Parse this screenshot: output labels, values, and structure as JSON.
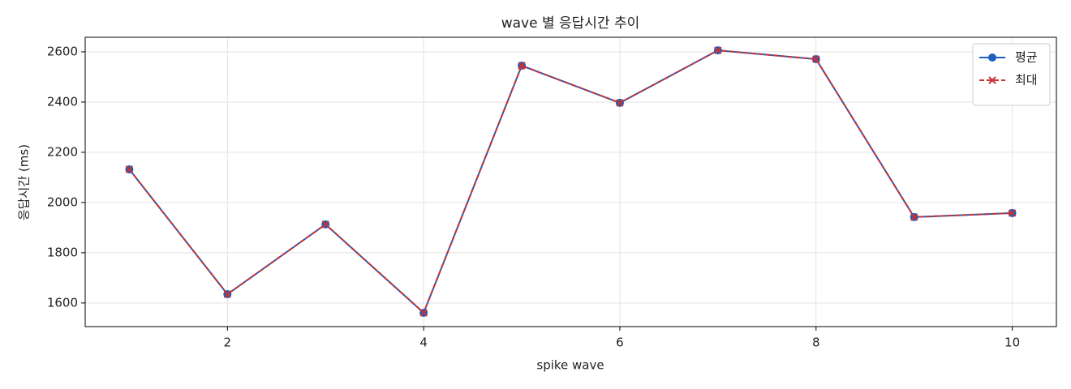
{
  "chart_data": {
    "type": "line",
    "title": "wave 별 응답시간 추이",
    "x_label": "spike wave",
    "y_label": "응답시간 (ms)",
    "x": [
      1,
      2,
      3,
      4,
      5,
      6,
      7,
      8,
      9,
      10
    ],
    "series": [
      {
        "name": "평균",
        "color": "#1f5fbf",
        "marker": "circle",
        "dash": false,
        "values": [
          2132,
          1635,
          1913,
          1561,
          2545,
          2397,
          2606,
          2571,
          1942,
          1958
        ]
      },
      {
        "name": "최대",
        "color": "#c83232",
        "marker": "x",
        "dash": true,
        "values": [
          2132,
          1635,
          1913,
          1561,
          2545,
          2397,
          2606,
          2571,
          1942,
          1958
        ]
      }
    ],
    "xlim": [
      0.55,
      10.45
    ],
    "ylim": [
      1506,
      2658
    ],
    "xticks": [
      2,
      4,
      6,
      8,
      10
    ],
    "yticks": [
      1600,
      1800,
      2000,
      2200,
      2400,
      2600
    ],
    "grid": true,
    "legend": "upper right"
  }
}
